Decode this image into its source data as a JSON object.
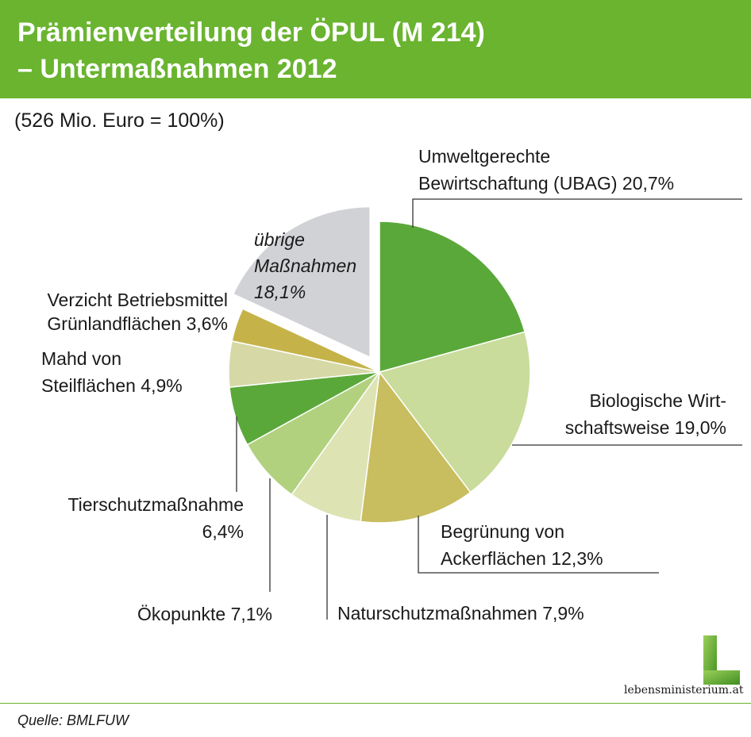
{
  "header": {
    "title_line1": "Prämienverteilung der ÖPUL (M 214)",
    "title_line2": "– Untermaßnahmen 2012",
    "subtitle": "(526 Mio. Euro = 100%)"
  },
  "chart_data": {
    "type": "pie",
    "title": "Prämienverteilung der ÖPUL (M 214) – Untermaßnahmen 2012",
    "subtitle": "(526 Mio. Euro = 100%)",
    "unit": "%",
    "start": "12 o'clock, clockwise",
    "slices": [
      {
        "key": "ubag",
        "lines": [
          "Umweltgerechte",
          "Bewirtschaftung (UBAG) 20,7%"
        ],
        "value": 20.7,
        "color": "#5aa83a",
        "exploded": false
      },
      {
        "key": "bio",
        "lines": [
          "Biologische Wirt-",
          "schaftsweise 19,0%"
        ],
        "value": 19.0,
        "color": "#c9dc9b",
        "exploded": false
      },
      {
        "key": "begruenung",
        "lines": [
          "Begrünung von",
          "Ackerflächen 12,3%"
        ],
        "value": 12.3,
        "color": "#c8bd5f",
        "exploded": false
      },
      {
        "key": "naturschutz",
        "lines": [
          "Naturschutzmaßnahmen 7,9%"
        ],
        "value": 7.9,
        "color": "#dde3b3",
        "exploded": false
      },
      {
        "key": "oekopunkte",
        "lines": [
          "Ökopunkte 7,1%"
        ],
        "value": 7.1,
        "color": "#b1d17f",
        "exploded": false
      },
      {
        "key": "tierschutz",
        "lines": [
          "Tierschutzmaßnahme",
          "6,4%"
        ],
        "value": 6.4,
        "color": "#5aa83a",
        "exploded": false
      },
      {
        "key": "mahd",
        "lines": [
          "Mahd von",
          "Steilflächen 4,9%"
        ],
        "value": 4.9,
        "color": "#d6d9a6",
        "exploded": false
      },
      {
        "key": "verzicht",
        "lines": [
          "Verzicht Betriebsmittel",
          "Grünlandflächen 3,6%"
        ],
        "value": 3.6,
        "color": "#c5b349",
        "exploded": false
      },
      {
        "key": "uebrige",
        "lines": [
          "übrige",
          "Maßnahmen",
          "18,1%"
        ],
        "value": 18.1,
        "color": "#d1d2d6",
        "exploded": true
      }
    ]
  },
  "footer": {
    "source": "Quelle: BMLFUW",
    "logo_text": "lebensministerium.at"
  }
}
